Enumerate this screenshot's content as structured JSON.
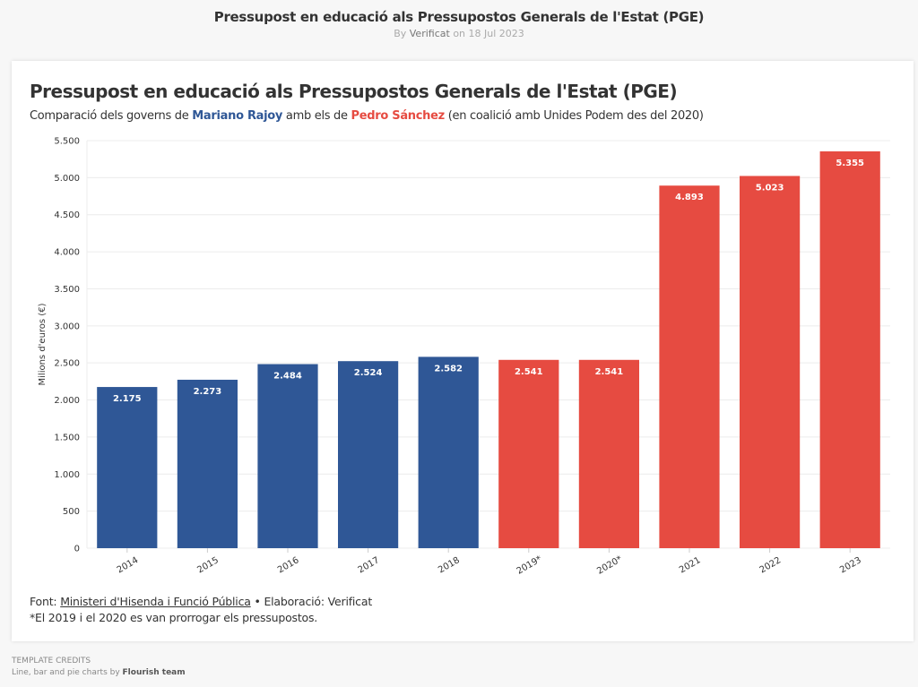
{
  "header": {
    "title": "Pressupost en educació als Pressupostos Generals de l'Estat (PGE)",
    "byline_prefix": "By",
    "author": "Verificat",
    "byline_date": "on 18 Jul 2023"
  },
  "card": {
    "title": "Pressupost en educació als Pressupostos Generals de l'Estat (PGE)",
    "subtitle_part1": "Comparació dels governs de ",
    "subtitle_rajoy": "Mariano Rajoy",
    "subtitle_part2": " amb els de ",
    "subtitle_sanchez": "Pedro Sánchez",
    "subtitle_part3": " (en coalició amb Unides Podem des del 2020)"
  },
  "footer": {
    "source_prefix": "Font: ",
    "source_link": "Ministeri d'Hisenda i Funció Pública",
    "separator": " • ",
    "elaboration": "Elaboració: Verificat",
    "note": "*El 2019 i el 2020 es van prorrogar els pressupostos."
  },
  "credits": {
    "heading": "TEMPLATE CREDITS",
    "text_prefix": "Line, bar and pie charts by ",
    "team": "Flourish team"
  },
  "colors": {
    "rajoy": "#2f5796",
    "sanchez": "#e64b41",
    "grid": "#ececec",
    "background": "#f7f7f7"
  },
  "chart_data": {
    "type": "bar",
    "title": "Pressupost en educació als Pressupostos Generals de l'Estat (PGE)",
    "subtitle": "Comparació dels governs de Mariano Rajoy amb els de Pedro Sánchez (en coalició amb Unides Podem des del 2020)",
    "xlabel": "",
    "ylabel": "Milions d'euros (€)",
    "ylim": [
      0,
      5500
    ],
    "yticks": [
      0,
      500,
      1000,
      1500,
      2000,
      2500,
      3000,
      3500,
      4000,
      4500,
      5000,
      5500
    ],
    "ytick_labels": [
      "0",
      "500",
      "1.000",
      "1.500",
      "2.000",
      "2.500",
      "3.000",
      "3.500",
      "4.000",
      "4.500",
      "5.000",
      "5.500"
    ],
    "grid": true,
    "categories": [
      "2014",
      "2015",
      "2016",
      "2017",
      "2018",
      "2019*",
      "2020*",
      "2021",
      "2022",
      "2023"
    ],
    "values": [
      2175,
      2273,
      2484,
      2524,
      2582,
      2541,
      2541,
      4893,
      5023,
      5355
    ],
    "value_labels": [
      "2.175",
      "2.273",
      "2.484",
      "2.524",
      "2.582",
      "2.541",
      "2.541",
      "4.893",
      "5.023",
      "5.355"
    ],
    "groups": [
      "Mariano Rajoy",
      "Mariano Rajoy",
      "Mariano Rajoy",
      "Mariano Rajoy",
      "Mariano Rajoy",
      "Pedro Sánchez",
      "Pedro Sánchez",
      "Pedro Sánchez",
      "Pedro Sánchez",
      "Pedro Sánchez"
    ],
    "legend": "none"
  }
}
